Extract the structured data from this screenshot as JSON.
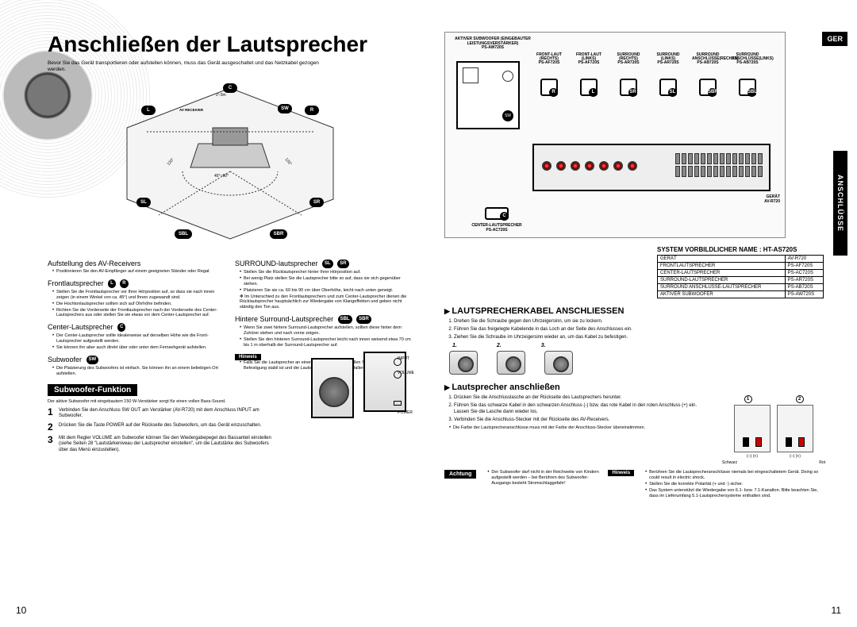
{
  "lang_tag": "GER",
  "side_tab": "ANSCHLÜSSE",
  "page_left_num": "10",
  "page_right_num": "11",
  "title": "Anschließen der Lautsprecher",
  "intro": "Bevor Sie das Gerät transportieren oder aufstellen können, muss das Gerät ausgeschaltet und das Netzkabel gezogen werden.",
  "room": {
    "dist_label": "2~3m",
    "angle_label": "45°~60°",
    "side_angle": "120°",
    "av_label": "AV RECEIVER",
    "speakers": {
      "L": "L",
      "C": "C",
      "R": "R",
      "SW": "SW",
      "SL": "SL",
      "SR": "SR",
      "SBL": "SBL",
      "SBR": "SBR"
    }
  },
  "left_sections": {
    "aufstellung": {
      "h": "Aufstellung des AV-Receivers",
      "items": [
        "Positionieren Sie den AV-Empfänger auf einem geeigneten Ständer oder Regal."
      ]
    },
    "front": {
      "h": "Frontlautsprecher",
      "badges": [
        "L",
        "R"
      ],
      "items": [
        "Stellen Sie die Frontlautsprecher vor Ihrer Hörposition auf, so dass sie nach innen zeigen (in einem Winkel von ca. 45°) und Ihnen zugewandt sind.",
        "Die Hochtonlautsprecher sollten sich auf Ohrhöhe befinden.",
        "Richten Sie die Vorderseite der Frontlautsprecher nach der Vorderseite des Center-Lautsprechers aus oder stellen Sie sie etwas vor dem Center-Lautsprecher auf."
      ]
    },
    "center": {
      "h": "Center-Lautsprecher",
      "badges": [
        "C"
      ],
      "items": [
        "Der Center-Lautsprecher sollte idealerweise auf derselben Höhe wie die Front-Lautsprecher aufgestellt werden.",
        "Sie können ihn aber auch direkt über oder unter dem Fernsehgerät aufstellen."
      ]
    },
    "sub": {
      "h": "Subwoofer",
      "badges": [
        "SW"
      ],
      "items": [
        "Die Platzierung des Subwoofers ist einfach. Sie können ihn an einem beliebigen Ort aufstellen."
      ]
    },
    "surround": {
      "h": "SURROUND-lautsprecher",
      "badges": [
        "SL",
        "SR"
      ],
      "items": [
        "Stellen Sie die Rücklautsprecher hinter Ihrer Hörposition auf.",
        "Bei wenig Platz stellen Sie die Lautsprecher bitte so auf, dass sie sich gegenüber stehen.",
        "Platzieren Sie sie ca. 60 bis 90 cm über Oberhöhe, leicht nach unten geneigt."
      ],
      "note": "✻ Im Unterschied zu den Frontlautsprechern und zum Center-Lautsprecher dienen die Rücklautsprecher hauptsächlich zur Wiedergabe von Klangeffekten und geben nicht ständig den Ton aus."
    },
    "rear": {
      "h": "Hintere Surround-Lautsprecher",
      "badges": [
        "SBL",
        "SBR"
      ],
      "items": [
        "Wenn Sie zwei hintere Surround-Lautsprecher aufstellen, sollten diese hinter dem Zuhörer stehen und nach vorne zeigen.",
        "Stellen Sie den hinteren Surround-Lautsprecher leicht nach innen weisend etwa 70 cm bis 1 m oberhalb der Surround-Lautsprecher auf."
      ]
    },
    "hinweis_label": "Hinweis",
    "hinweis_items": [
      "Falls Sie die Lautsprecher an einer Wand installieren, stellen Sie sicher, dass die Befestigung stabil ist und die Lautsprecher nicht herunterfallen können."
    ]
  },
  "subwoofer_box": {
    "title": "Subwoofer-Funktion",
    "lead": "Der aktive Subwoofer mit eingebautem 150 W-Verstärker sorgt für einen vollen Bass-Sound.",
    "steps": [
      "Verbinden Sie den Anschluss SW OUT am Verstärker (AV-R720) mit dem Anschluss INPUT am Subwoofer.",
      "Drücken Sie die Taste POWER auf der Rückseite des Subwoofers, um das Gerät einzuschalten.",
      "Mit dem Regler VOLUME am Subwoofer können Sie den Wiedergabepegel des Bassanteil einstellen (siehe Seiten 28 \"Lautstärkeniveau der Lautsprecher einstellen\", um die Lautstärke des Subwoofers über das Menü einzustellen)."
    ],
    "fig_labels": {
      "input": "INPUT",
      "volume": "VOLUME",
      "power": "POWER"
    }
  },
  "wiring": {
    "amp_title": "AKTIVER SUBWOOFER (EINGEBAUTER LEISTUNGSVERSTÄRKER)",
    "amp_model": "PS-AW720S",
    "cols": [
      {
        "t": "FRONT-LAUT (RECHTS)",
        "m": "PS-AF720S",
        "tag": "R"
      },
      {
        "t": "FRONT-LAUT (LINKS)",
        "m": "PS-AF720S",
        "tag": "L"
      },
      {
        "t": "SURROUND (RECHTS)",
        "m": "PS-AR720S",
        "tag": "SR"
      },
      {
        "t": "SURROUND (LINKS)",
        "m": "PS-AR720S",
        "tag": "SL"
      },
      {
        "t": "SURROUND ANSCHLÜSSE(RECHTS)",
        "m": "PS-AB720S",
        "tag": "SBR"
      },
      {
        "t": "SURROUND ANSCHLÜSSE(LINKS)",
        "m": "PS-AB720S",
        "tag": "SBL"
      }
    ],
    "center_label": "CENTER-LAUTSPRECHER",
    "center_model": "PS-AC720S",
    "device_label": "GERÄT",
    "device_model": "AV-R720"
  },
  "system_name_line": "SYSTEM VORBILDLICHER NAME : HT-AS720S",
  "model_table": [
    [
      "GERÄT",
      "AV-R720"
    ],
    [
      "FRONTLAUTSPRECHER",
      "PS-AF720S"
    ],
    [
      "CENTER-LAUTSPRECHER",
      "PS-AC720S"
    ],
    [
      "SURROUND-LAUTSPRECHER",
      "PS-AR720S"
    ],
    [
      "SURROUND ANSCHLÜSSE-LAUTSPRECHER",
      "PS-AB720S"
    ],
    [
      "AKTIVER SUBWOOFER",
      "PS-AW720S"
    ]
  ],
  "cable_section": {
    "h": "LAUTSPRECHERKABEL ANSCHLIESSEN",
    "steps": [
      "Drehen Sie die Schraube gegen den Uhrzeigersinn, um sie zu lockern.",
      "Führen Sie das freigelegte Kabelende in das Loch an der Seite des Anschlusses ein.",
      "Ziehen Sie die Schraube im Uhrzeigersinn wieder an, um das Kabel zu befestigen."
    ],
    "nums": [
      "1.",
      "2.",
      "3."
    ]
  },
  "connect_section": {
    "h": "Lautsprecher anschließen",
    "steps": [
      "Drücken Sie die Anschlusslasche an der Rückseite des Lautsprechers herunter.",
      "Führen Sie das schwarze Kabel in den schwarzen Anschluss (-) bzw. das rote Kabel in den roten Anschluss (+) ein. Lassen Sie die Lasche dann wieder los.",
      "Verbinden Sie die Anschluss-Stecker mit der Rückseite des AV-Receivers.",
      "Die Farbe der Lautsprecheranschlüsse muss mit der Farbe der Anschluss-Stecker übereinstimmen."
    ],
    "fig_black": "Schwarz",
    "fig_red": "Rot",
    "fig_polarity": "(–) (+)"
  },
  "achtung": {
    "label": "Achtung",
    "text": "Der Subwoofer darf nicht in der Reichweite von Kindern aufgestellt werden – bei Berühren des Subwoofer-Ausgangs besteht Stromschlaggefahr!"
  },
  "hinweis_r": {
    "label": "Hinweis",
    "items": [
      "Berühren Sie die Lautsprecheranschlüsse niemals bei eingeschaltetem Gerät. Doing so could result in electric shock.",
      "Stellen Sie die korrekte Polarität (+ und -) sicher.",
      "Das System unterstützt die Wiedergabe von 6.1- bzw. 7.1-Kanalton. Bitte beachten Sie, dass im Lieferumfang 5.1-Lautsprechersysteme enthalten sind."
    ]
  }
}
